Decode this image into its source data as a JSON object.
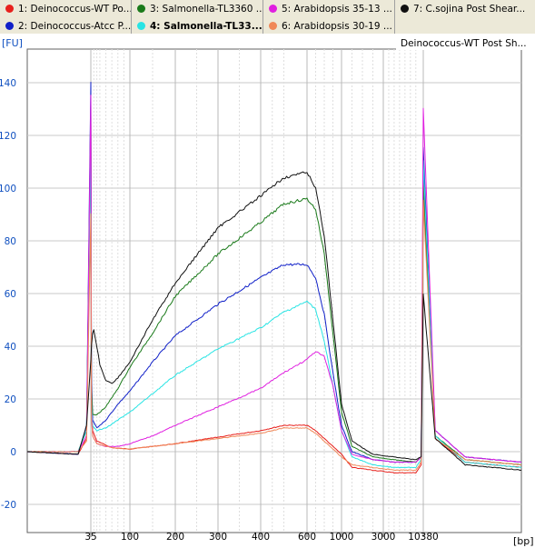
{
  "legend": [
    {
      "label": "1: Deinococcus-WT Po...",
      "color": "#e8201c",
      "bold": false
    },
    {
      "label": "2: Deinococcus-Atcc P...",
      "color": "#1020c8",
      "bold": false
    },
    {
      "label": "3: Salmonella-TL3360 ...",
      "color": "#1a7a1a",
      "bold": false
    },
    {
      "label": "4: Salmonella-TL33...",
      "color": "#28e4e4",
      "bold": true
    },
    {
      "label": "5: Arabidopsis 35-13 ...",
      "color": "#e020e0",
      "bold": false
    },
    {
      "label": "6: Arabidopsis 30-19 ...",
      "color": "#f08858",
      "bold": false
    },
    {
      "label": "7: C.sojina Post Shear...",
      "color": "#101010",
      "bold": false
    }
  ],
  "sample_title": "Deinococcus-WT Post Sh...",
  "chart_data": {
    "type": "line",
    "ylabel": "[FU]",
    "xlabel": "[bp]",
    "ylim": [
      -25,
      150
    ],
    "yticks": [
      -20,
      0,
      20,
      40,
      60,
      80,
      100,
      120,
      140
    ],
    "xticks": [
      {
        "label": "35",
        "bp": 35
      },
      {
        "label": "100",
        "bp": 100
      },
      {
        "label": "200",
        "bp": 200
      },
      {
        "label": "300",
        "bp": 300
      },
      {
        "label": "400",
        "bp": 400
      },
      {
        "label": "600",
        "bp": 600
      },
      {
        "label": "1000",
        "bp": 1000
      },
      {
        "label": "3000",
        "bp": 3000
      },
      {
        "label": "10380",
        "bp": 10380
      }
    ],
    "grid": true,
    "series": [
      {
        "name": "1: Deinococcus-WT Po...",
        "color": "#e8201c",
        "points": [
          [
            20,
            0
          ],
          [
            32,
            -1
          ],
          [
            34,
            5
          ],
          [
            35,
            132
          ],
          [
            36,
            20
          ],
          [
            38,
            8
          ],
          [
            45,
            4
          ],
          [
            70,
            1.5
          ],
          [
            100,
            1
          ],
          [
            150,
            2
          ],
          [
            200,
            3
          ],
          [
            300,
            5.5
          ],
          [
            400,
            8
          ],
          [
            500,
            10
          ],
          [
            600,
            10
          ],
          [
            700,
            8
          ],
          [
            800,
            5
          ],
          [
            900,
            2
          ],
          [
            1000,
            -1
          ],
          [
            1500,
            -6
          ],
          [
            2500,
            -7
          ],
          [
            5000,
            -8
          ],
          [
            9000,
            -8
          ],
          [
            10000,
            -5
          ],
          [
            10380,
            105
          ],
          [
            10700,
            5
          ],
          [
            11500,
            -4
          ],
          [
            13000,
            -6
          ]
        ]
      },
      {
        "name": "2: Deinococcus-Atcc P...",
        "color": "#1020c8",
        "points": [
          [
            20,
            0
          ],
          [
            32,
            -1
          ],
          [
            34,
            10
          ],
          [
            35,
            140
          ],
          [
            36,
            30
          ],
          [
            38,
            12
          ],
          [
            45,
            9
          ],
          [
            60,
            12
          ],
          [
            80,
            18
          ],
          [
            100,
            23
          ],
          [
            150,
            34
          ],
          [
            200,
            44
          ],
          [
            300,
            56
          ],
          [
            400,
            66
          ],
          [
            500,
            71
          ],
          [
            600,
            71
          ],
          [
            700,
            66
          ],
          [
            800,
            52
          ],
          [
            900,
            30
          ],
          [
            1000,
            10
          ],
          [
            1500,
            0
          ],
          [
            2500,
            -3
          ],
          [
            5000,
            -4
          ],
          [
            9000,
            -4
          ],
          [
            10000,
            -2
          ],
          [
            10380,
            115
          ],
          [
            10700,
            8
          ],
          [
            11500,
            -2
          ],
          [
            13000,
            -4
          ]
        ]
      },
      {
        "name": "3: Salmonella-TL3360 ...",
        "color": "#1a7a1a",
        "points": [
          [
            20,
            0
          ],
          [
            32,
            0
          ],
          [
            34,
            8
          ],
          [
            35,
            125
          ],
          [
            36,
            25
          ],
          [
            38,
            14
          ],
          [
            45,
            14
          ],
          [
            60,
            17
          ],
          [
            80,
            24
          ],
          [
            100,
            32
          ],
          [
            150,
            45
          ],
          [
            200,
            59
          ],
          [
            300,
            75
          ],
          [
            400,
            87
          ],
          [
            500,
            94
          ],
          [
            600,
            96
          ],
          [
            700,
            92
          ],
          [
            800,
            75
          ],
          [
            900,
            45
          ],
          [
            1000,
            15
          ],
          [
            1500,
            2
          ],
          [
            2500,
            -2
          ],
          [
            5000,
            -3
          ],
          [
            9000,
            -4
          ],
          [
            10000,
            -2
          ],
          [
            10380,
            100
          ],
          [
            10700,
            6
          ],
          [
            11500,
            -3
          ],
          [
            13000,
            -5
          ]
        ]
      },
      {
        "name": "4: Salmonella-TL33...",
        "color": "#28e4e4",
        "points": [
          [
            20,
            0
          ],
          [
            32,
            0
          ],
          [
            34,
            8
          ],
          [
            35,
            120
          ],
          [
            36,
            18
          ],
          [
            38,
            10
          ],
          [
            45,
            8
          ],
          [
            60,
            9
          ],
          [
            80,
            12
          ],
          [
            100,
            15
          ],
          [
            150,
            22
          ],
          [
            200,
            29
          ],
          [
            300,
            39
          ],
          [
            400,
            47
          ],
          [
            500,
            53
          ],
          [
            600,
            57
          ],
          [
            700,
            54
          ],
          [
            800,
            42
          ],
          [
            900,
            25
          ],
          [
            1000,
            8
          ],
          [
            1500,
            -2
          ],
          [
            2500,
            -5
          ],
          [
            5000,
            -6
          ],
          [
            9000,
            -6
          ],
          [
            10000,
            -3
          ],
          [
            10380,
            110
          ],
          [
            10700,
            6
          ],
          [
            11500,
            -4
          ],
          [
            13000,
            -6
          ]
        ]
      },
      {
        "name": "5: Arabidopsis 35-13 ...",
        "color": "#e020e0",
        "points": [
          [
            20,
            0
          ],
          [
            32,
            0
          ],
          [
            34,
            6
          ],
          [
            35,
            135
          ],
          [
            36,
            15
          ],
          [
            38,
            6
          ],
          [
            45,
            3
          ],
          [
            60,
            2
          ],
          [
            80,
            2
          ],
          [
            100,
            3
          ],
          [
            150,
            6
          ],
          [
            200,
            10
          ],
          [
            300,
            17
          ],
          [
            400,
            24
          ],
          [
            500,
            30
          ],
          [
            600,
            35
          ],
          [
            700,
            38
          ],
          [
            800,
            36
          ],
          [
            900,
            25
          ],
          [
            1000,
            8
          ],
          [
            1500,
            -1
          ],
          [
            2500,
            -3
          ],
          [
            5000,
            -4
          ],
          [
            9000,
            -4
          ],
          [
            10000,
            -2
          ],
          [
            10380,
            130
          ],
          [
            10700,
            8
          ],
          [
            11500,
            -2
          ],
          [
            13000,
            -4
          ]
        ]
      },
      {
        "name": "6: Arabidopsis 30-19 ...",
        "color": "#f08858",
        "points": [
          [
            20,
            0
          ],
          [
            32,
            0
          ],
          [
            34,
            4
          ],
          [
            35,
            90
          ],
          [
            36,
            12
          ],
          [
            38,
            6
          ],
          [
            45,
            3
          ],
          [
            70,
            1.5
          ],
          [
            100,
            1
          ],
          [
            150,
            2
          ],
          [
            200,
            3
          ],
          [
            300,
            5
          ],
          [
            400,
            7
          ],
          [
            500,
            9
          ],
          [
            600,
            9
          ],
          [
            700,
            7
          ],
          [
            800,
            4
          ],
          [
            900,
            1
          ],
          [
            1000,
            -2
          ],
          [
            1500,
            -5
          ],
          [
            2500,
            -6
          ],
          [
            5000,
            -7
          ],
          [
            9000,
            -7
          ],
          [
            10000,
            -4
          ],
          [
            10380,
            95
          ],
          [
            10700,
            5
          ],
          [
            11500,
            -3
          ],
          [
            13000,
            -5
          ]
        ]
      },
      {
        "name": "7: C.sojina Post Shear...",
        "color": "#101010",
        "points": [
          [
            20,
            0
          ],
          [
            32,
            -1
          ],
          [
            34,
            10
          ],
          [
            35,
            35
          ],
          [
            36,
            40
          ],
          [
            38,
            45
          ],
          [
            40,
            46
          ],
          [
            45,
            40
          ],
          [
            50,
            33
          ],
          [
            60,
            27
          ],
          [
            70,
            26
          ],
          [
            80,
            28
          ],
          [
            100,
            34
          ],
          [
            150,
            50
          ],
          [
            200,
            64
          ],
          [
            300,
            85
          ],
          [
            400,
            97
          ],
          [
            500,
            104
          ],
          [
            600,
            106
          ],
          [
            700,
            100
          ],
          [
            800,
            82
          ],
          [
            900,
            50
          ],
          [
            1000,
            18
          ],
          [
            1500,
            4
          ],
          [
            2500,
            -1
          ],
          [
            5000,
            -2
          ],
          [
            9000,
            -3
          ],
          [
            10000,
            -2
          ],
          [
            10380,
            60
          ],
          [
            10700,
            5
          ],
          [
            11500,
            -5
          ],
          [
            13000,
            -7
          ]
        ]
      }
    ]
  }
}
